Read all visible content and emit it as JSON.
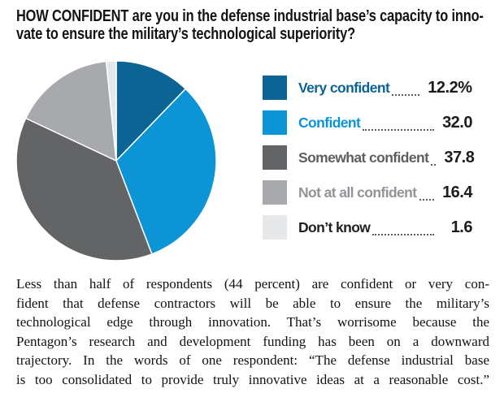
{
  "title": {
    "lines": [
      "HOW CONFIDENT are you in the defense industrial base’s capacity to inno-",
      "vate to ensure the military’s technological superiority?"
    ],
    "full_text": "HOW CONFIDENT are you in the defense industrial base’s capacity to innovate to ensure the military’s technological superiority?"
  },
  "chart_data": {
    "type": "pie",
    "title": "HOW CONFIDENT are you in the defense industrial base’s capacity to innovate to ensure the military’s technological superiority?",
    "categories": [
      "Very confident",
      "Confident",
      "Somewhat confident",
      "Not at all confident",
      "Don’t know"
    ],
    "values": [
      12.2,
      32.0,
      37.8,
      16.4,
      1.6
    ],
    "unit": "percent",
    "value_labels": [
      "12.2",
      "32.0",
      "37.8",
      "16.4",
      "1.6"
    ],
    "value_suffixes": [
      "%",
      "",
      "",
      "",
      ""
    ],
    "slice_colors": [
      "#0b6493",
      "#0c95d6",
      "#636466",
      "#a7a9ac",
      "#e6e7e8"
    ],
    "label_colors": [
      "#0b6493",
      "#0c95d6",
      "#5d5e60",
      "#919396",
      "#231f20"
    ],
    "start_angle_deg": 0,
    "direction": "clockwise",
    "legend_position": "right",
    "slice_stroke_color": "#ffffff",
    "leader_dot_color": "#5a5b5d"
  },
  "paragraph": {
    "lines": [
      "Less than half of respondents (44 percent) are confident or very con-",
      "fident that defense contractors will be able to ensure the military’s",
      "technological edge through innovation. That’s worrisome because the",
      "Pentagon’s research and development funding has been on a downward",
      "trajectory. In the words of one respondent: “The defense industrial base",
      "is too consolidated to provide truly innovative ideas at a reasonable cost.”"
    ]
  }
}
